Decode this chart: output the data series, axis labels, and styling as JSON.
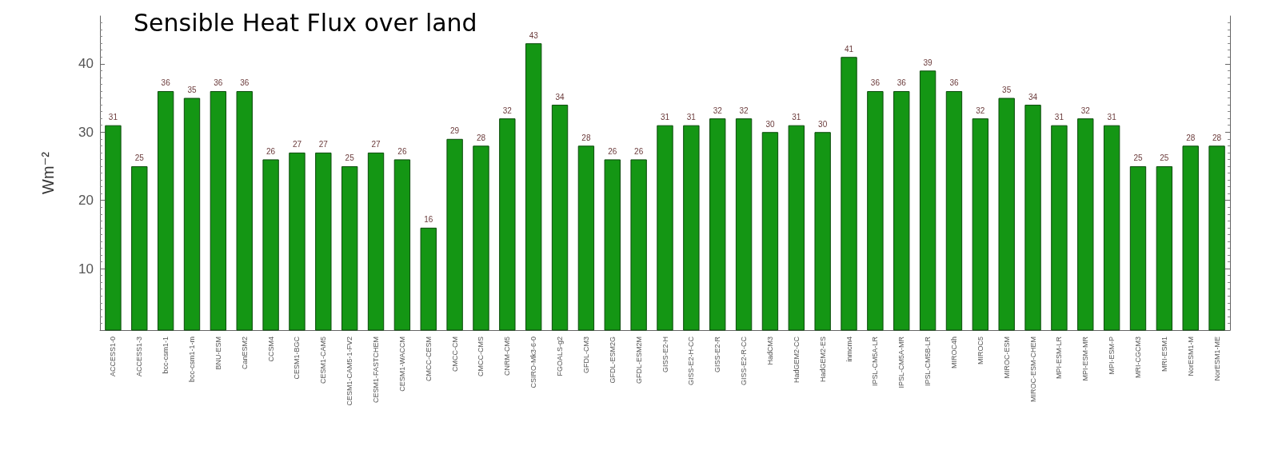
{
  "chart_data": {
    "type": "bar",
    "title": "Sensible Heat Flux over land",
    "ylabel": "Wm⁻²",
    "categories": [
      "ACCESS1-0",
      "ACCESS1-3",
      "bcc-csm1-1",
      "bcc-csm1-1-m",
      "BNU-ESM",
      "CanESM2",
      "CCSM4",
      "CESM1-BGC",
      "CESM1-CAM5",
      "CESM1-CAM5-1-FV2",
      "CESM1-FASTCHEM",
      "CESM1-WACCM",
      "CMCC-CESM",
      "CMCC-CM",
      "CMCC-CMS",
      "CNRM-CM5",
      "CSIRO-Mk3-6-0",
      "FGOALS-g2",
      "GFDL-CM3",
      "GFDL-ESM2G",
      "GFDL-ESM2M",
      "GISS-E2-H",
      "GISS-E2-H-CC",
      "GISS-E2-R",
      "GISS-E2-R-CC",
      "HadCM3",
      "HadGEM2-CC",
      "HadGEM2-ES",
      "inmcm4",
      "IPSL-CM5A-LR",
      "IPSL-CM5A-MR",
      "IPSL-CM5B-LR",
      "MIROC4h",
      "MIROC5",
      "MIROC-ESM",
      "MIROC-ESM-CHEM",
      "MPI-ESM-LR",
      "MPI-ESM-MR",
      "MPI-ESM-P",
      "MRI-CGCM3",
      "MRI-ESM1",
      "NorESM1-M",
      "NorESM1-ME"
    ],
    "values": [
      31,
      25,
      36,
      35,
      36,
      36,
      26,
      27,
      27,
      25,
      27,
      26,
      16,
      29,
      28,
      32,
      43,
      34,
      28,
      26,
      26,
      31,
      31,
      32,
      32,
      30,
      31,
      30,
      41,
      36,
      36,
      39,
      36,
      32,
      35,
      34,
      31,
      32,
      31,
      25,
      25,
      28,
      28
    ],
    "color": "#149614",
    "data_labels": true,
    "ylim": [
      1,
      47
    ],
    "yticks": [
      10,
      20,
      30,
      40
    ],
    "grid": false
  }
}
